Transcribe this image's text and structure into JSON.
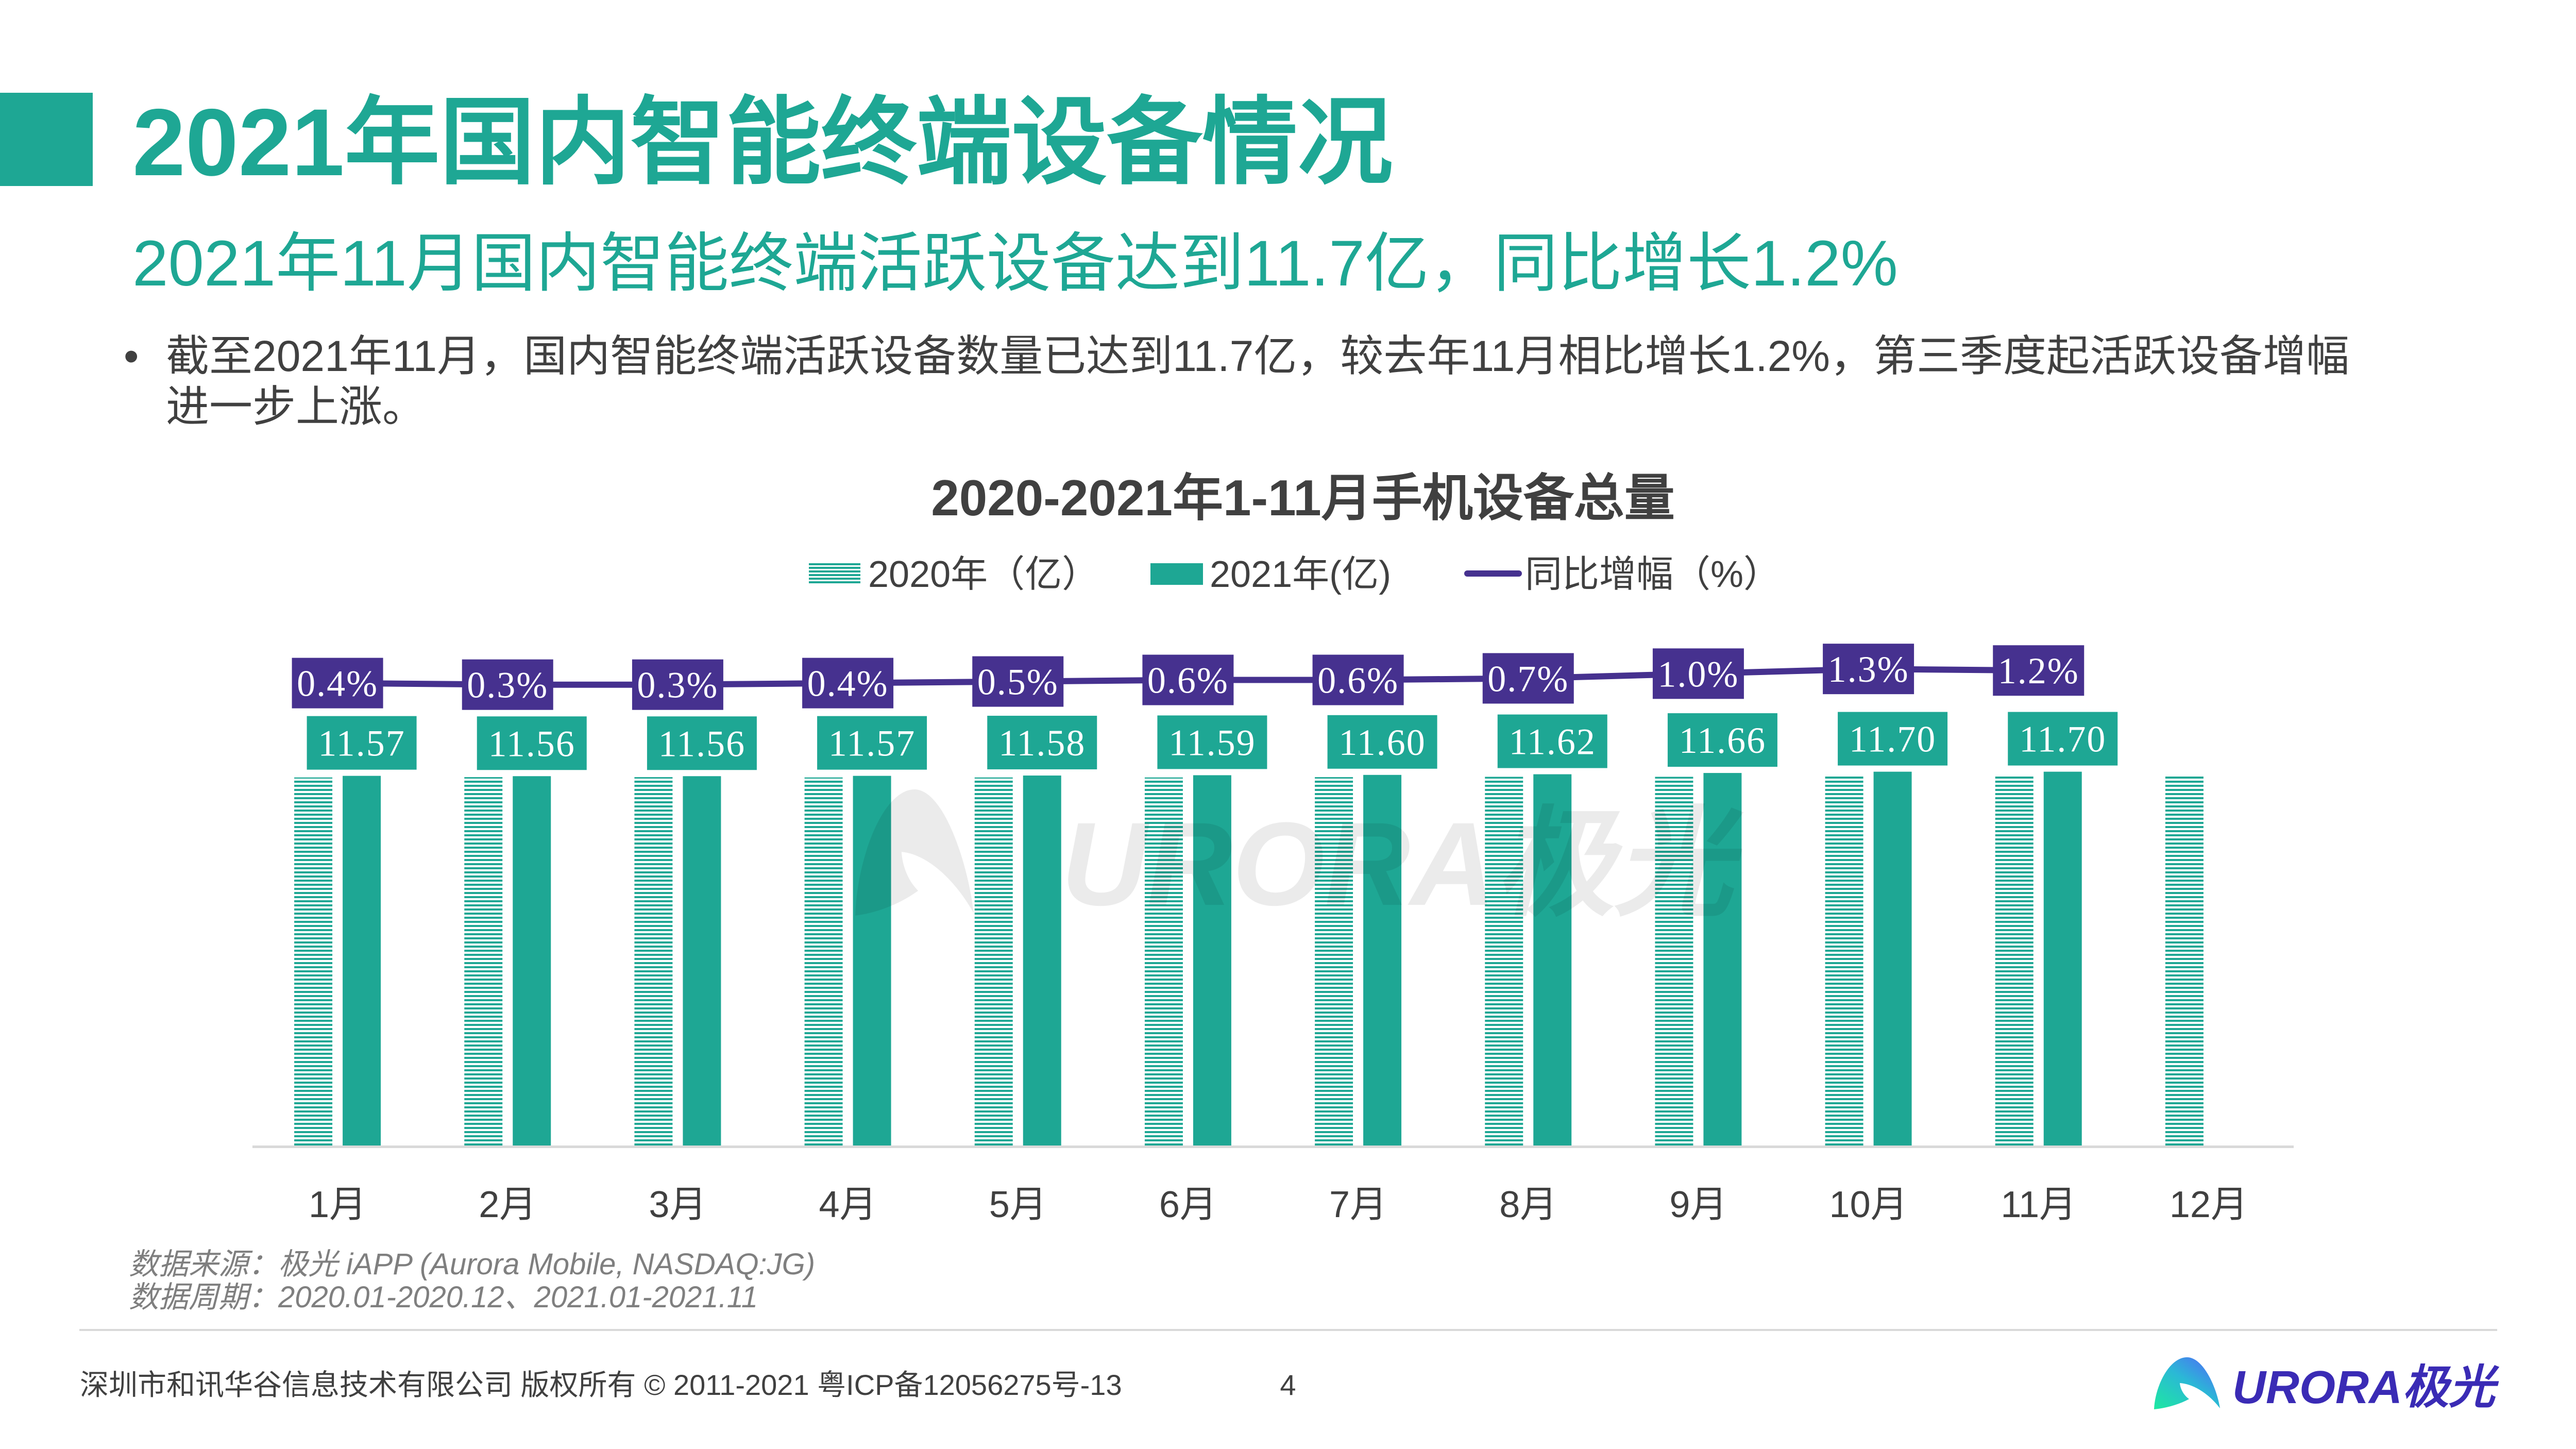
{
  "header": {
    "title": "2021年国内智能终端设备情况",
    "subtitle": "2021年11月国内智能终端活跃设备达到11.7亿，同比增长1.2%"
  },
  "summary": {
    "bullet_symbol": "•",
    "bullets": [
      "截至2021年11月，国内智能终端活跃设备数量已达到11.7亿，较去年11月相比增长1.2%，第三季度起活跃设备增幅进一步上涨。"
    ]
  },
  "colors": {
    "accent": "#1EA794",
    "line": "#46318F",
    "text": "#404040",
    "muted_text": "#7F7F7F",
    "axis": "#D9D9D9",
    "logo_text": "#3A2BB5",
    "label_text": "#FFFFFF"
  },
  "chart_data": {
    "type": "bar",
    "title": "2020-2021年1-11月手机设备总量",
    "xlabel": "",
    "ylabel": "",
    "categories": [
      "1月",
      "2月",
      "3月",
      "4月",
      "5月",
      "6月",
      "7月",
      "8月",
      "9月",
      "10月",
      "11月",
      "12月"
    ],
    "series": [
      {
        "name": "2020年（亿）",
        "type": "bar",
        "fill": "horizontal-stripes",
        "values": [
          11.52,
          11.53,
          11.53,
          11.52,
          11.52,
          11.52,
          11.53,
          11.54,
          11.54,
          11.55,
          11.56,
          11.56
        ],
        "labels": [
          null,
          null,
          null,
          null,
          null,
          null,
          null,
          null,
          null,
          null,
          null,
          null
        ]
      },
      {
        "name": "2021年(亿)",
        "type": "bar",
        "fill": "solid",
        "values": [
          11.57,
          11.56,
          11.56,
          11.57,
          11.58,
          11.59,
          11.6,
          11.62,
          11.66,
          11.7,
          11.7,
          null
        ],
        "labels": [
          "11.57",
          "11.56",
          "11.56",
          "11.57",
          "11.58",
          "11.59",
          "11.60",
          "11.62",
          "11.66",
          "11.70",
          "11.70",
          null
        ]
      },
      {
        "name": "同比增幅（%）",
        "type": "line",
        "axis": "secondary",
        "values": [
          0.4,
          0.3,
          0.3,
          0.4,
          0.5,
          0.6,
          0.6,
          0.7,
          1.0,
          1.3,
          1.2,
          null
        ],
        "labels": [
          "0.4%",
          "0.3%",
          "0.3%",
          "0.4%",
          "0.5%",
          "0.6%",
          "0.6%",
          "0.7%",
          "1.0%",
          "1.3%",
          "1.2%",
          null
        ]
      }
    ],
    "ylim": [
      0,
      16
    ],
    "y2lim": [
      -29,
      3.5
    ],
    "grid": false,
    "axes_visible": false,
    "legend": "top-center"
  },
  "source": {
    "data_source": "数据来源：极光 iAPP (Aurora Mobile, NASDAQ:JG)",
    "data_period": "数据周期：2020.01-2020.12、2021.01-2021.11"
  },
  "watermark": {
    "icon": "aurora-logo-icon",
    "text": "URORA极光"
  },
  "footer": {
    "copyright": "深圳市和讯华谷信息技术有限公司 版权所有 © 2011-2021 粤ICP备12056275号-13",
    "page_number": "4",
    "logo_icon": "aurora-logo-icon",
    "logo_text": "URORA极光"
  }
}
